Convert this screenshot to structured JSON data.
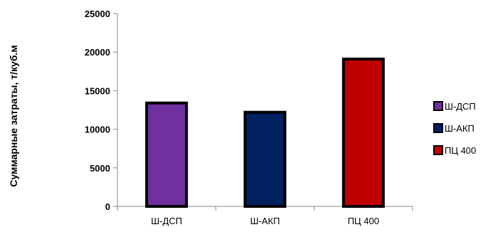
{
  "chart_data": {
    "type": "bar",
    "title": "",
    "xlabel": "",
    "ylabel": "Суммарные затраты, т/куб.м",
    "categories": [
      "Ш-ДСП",
      "Ш-АКП",
      "ПЦ 400"
    ],
    "series": [
      {
        "values": [
          13400,
          12200,
          19100
        ]
      }
    ],
    "bar_colors": [
      "#7030A0",
      "#002060",
      "#C00000"
    ],
    "ylim": [
      0,
      25000
    ],
    "yticks": [
      0,
      5000,
      10000,
      15000,
      20000,
      25000
    ],
    "ytick_labels": [
      "0",
      "5000",
      "10000",
      "15000",
      "20000",
      "25000"
    ],
    "grid": false,
    "legend": {
      "position": "right",
      "entries": [
        {
          "label": "Ш-ДСП",
          "color": "#7030A0"
        },
        {
          "label": "Ш-АКП",
          "color": "#002060"
        },
        {
          "label": "ПЦ 400",
          "color": "#C00000"
        }
      ]
    }
  }
}
